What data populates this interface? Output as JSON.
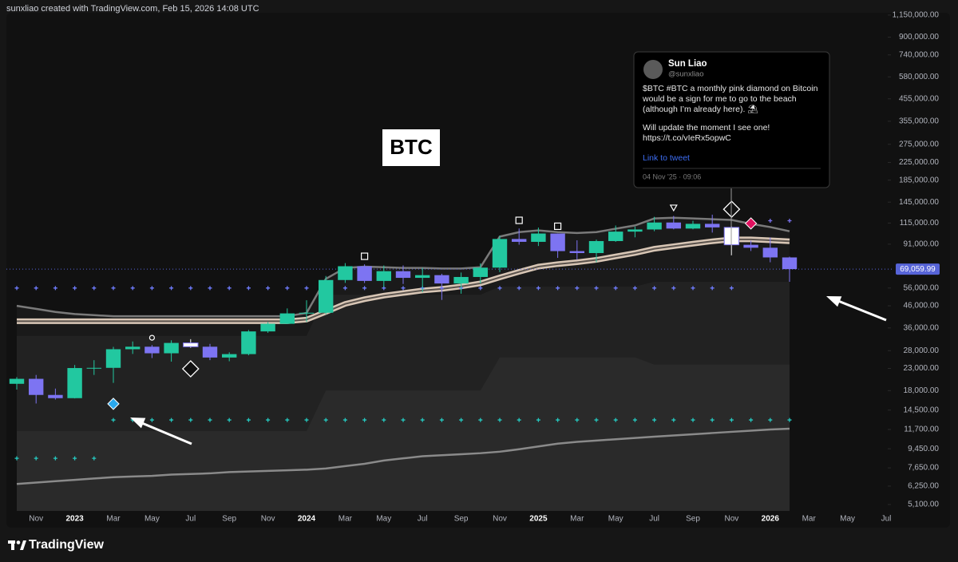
{
  "header": "sunxliao created with TradingView.com, Feb 15, 2026 14:08 UTC",
  "footer": "TradingView",
  "chart_data": {
    "type": "candlestick",
    "symbol_label": "BTC",
    "log_scale": true,
    "categories": [
      "2022-10",
      "2022-11",
      "2022-12",
      "2023-01",
      "2023-02",
      "2023-03",
      "2023-04",
      "2023-05",
      "2023-06",
      "2023-07",
      "2023-08",
      "2023-09",
      "2023-10",
      "2023-11",
      "2023-12",
      "2024-01",
      "2024-02",
      "2024-03",
      "2024-04",
      "2024-05",
      "2024-06",
      "2024-07",
      "2024-08",
      "2024-09",
      "2024-10",
      "2024-11",
      "2024-12",
      "2025-01",
      "2025-02",
      "2025-03",
      "2025-04",
      "2025-05",
      "2025-06",
      "2025-07",
      "2025-08",
      "2025-09",
      "2025-10",
      "2025-11",
      "2025-12",
      "2026-01",
      "2026-02"
    ],
    "open": [
      19400,
      20500,
      17150,
      16550,
      23100,
      23150,
      28450,
      29250,
      27200,
      30500,
      29250,
      25950,
      26950,
      34650,
      37700,
      42300,
      42600,
      61200,
      71300,
      60600,
      67500,
      62700,
      64600,
      58900,
      63300,
      70200,
      96400,
      93400,
      102400,
      84300,
      82500,
      94200,
      104600,
      107100,
      115700,
      108200,
      114000,
      109600,
      90400,
      87500,
      78600
    ],
    "high": [
      20900,
      21400,
      18400,
      23900,
      25200,
      29200,
      31000,
      29800,
      31400,
      31800,
      30200,
      27500,
      35200,
      38400,
      44700,
      48900,
      64000,
      73800,
      72800,
      71900,
      71900,
      70000,
      65600,
      66500,
      73600,
      99600,
      108300,
      109400,
      102500,
      95000,
      95800,
      111900,
      110500,
      123200,
      124500,
      117900,
      126200,
      110700,
      94600,
      97900,
      79300
    ],
    "low": [
      18200,
      15600,
      16300,
      16500,
      21400,
      19600,
      27000,
      25800,
      24800,
      28900,
      25200,
      24900,
      26600,
      34100,
      37600,
      38500,
      41900,
      59300,
      59200,
      56600,
      58600,
      53500,
      49100,
      52600,
      58900,
      66800,
      90500,
      89200,
      78200,
      76600,
      74400,
      93400,
      98200,
      105100,
      107300,
      107300,
      103500,
      80600,
      84400,
      74500,
      60000
    ],
    "close": [
      20500,
      17150,
      16550,
      23100,
      23150,
      28450,
      29250,
      27200,
      30500,
      29250,
      25950,
      26950,
      34650,
      37700,
      42300,
      42600,
      61200,
      71300,
      60600,
      67500,
      62700,
      64600,
      58900,
      63300,
      70200,
      96400,
      93400,
      102400,
      84300,
      82500,
      94200,
      104600,
      107100,
      115700,
      108200,
      114000,
      109600,
      90400,
      87500,
      78600,
      69059.99
    ],
    "up_color": "#22c8a0",
    "down_color": "#7d74f2",
    "highlight_color": "#ffffff",
    "highlighted": [
      "2023-07",
      "2025-11"
    ],
    "ylim": [
      4750,
      1190000
    ],
    "yticks": [
      {
        "value": 1150000,
        "label": "1,150,000.00"
      },
      {
        "value": 900000,
        "label": "900,000.00"
      },
      {
        "value": 740000,
        "label": "740,000.00"
      },
      {
        "value": 580000,
        "label": "580,000.00"
      },
      {
        "value": 455000,
        "label": "455,000.00"
      },
      {
        "value": 355000,
        "label": "355,000.00"
      },
      {
        "value": 275000,
        "label": "275,000.00"
      },
      {
        "value": 225000,
        "label": "225,000.00"
      },
      {
        "value": 185000,
        "label": "185,000.00"
      },
      {
        "value": 145000,
        "label": "145,000.00"
      },
      {
        "value": 115000,
        "label": "115,000.00"
      },
      {
        "value": 91000,
        "label": "91,000.00"
      },
      {
        "value": 56000,
        "label": "56,000.00"
      },
      {
        "value": 46000,
        "label": "46,000.00"
      },
      {
        "value": 36000,
        "label": "36,000.00"
      },
      {
        "value": 28000,
        "label": "28,000.00"
      },
      {
        "value": 23000,
        "label": "23,000.00"
      },
      {
        "value": 18000,
        "label": "18,000.00"
      },
      {
        "value": 14500,
        "label": "14,500.00"
      },
      {
        "value": 11700,
        "label": "11,700.00"
      },
      {
        "value": 9450,
        "label": "9,450.00"
      },
      {
        "value": 7650,
        "label": "7,650.00"
      },
      {
        "value": 6250,
        "label": "6,250.00"
      },
      {
        "value": 5100,
        "label": "5,100.00"
      }
    ],
    "xlim": [
      "2022-10",
      "2026-07"
    ],
    "xticks": [
      {
        "value": "2022-11",
        "label": "Nov"
      },
      {
        "value": "2023-01",
        "label": "2023"
      },
      {
        "value": "2023-03",
        "label": "Mar"
      },
      {
        "value": "2023-05",
        "label": "May"
      },
      {
        "value": "2023-07",
        "label": "Jul"
      },
      {
        "value": "2023-09",
        "label": "Sep"
      },
      {
        "value": "2023-11",
        "label": "Nov"
      },
      {
        "value": "2024-01",
        "label": "2024"
      },
      {
        "value": "2024-03",
        "label": "Mar"
      },
      {
        "value": "2024-05",
        "label": "May"
      },
      {
        "value": "2024-07",
        "label": "Jul"
      },
      {
        "value": "2024-09",
        "label": "Sep"
      },
      {
        "value": "2024-11",
        "label": "Nov"
      },
      {
        "value": "2025-01",
        "label": "2025"
      },
      {
        "value": "2025-03",
        "label": "Mar"
      },
      {
        "value": "2025-05",
        "label": "May"
      },
      {
        "value": "2025-07",
        "label": "Jul"
      },
      {
        "value": "2025-09",
        "label": "Sep"
      },
      {
        "value": "2025-11",
        "label": "Nov"
      },
      {
        "value": "2026-01",
        "label": "2026"
      },
      {
        "value": "2026-03",
        "label": "Mar"
      },
      {
        "value": "2026-05",
        "label": "May"
      },
      {
        "value": "2026-07",
        "label": "Jul"
      }
    ],
    "last_price": {
      "value": 69059.99,
      "label": "69,059.99",
      "color": "#5764d8"
    },
    "lines": [
      {
        "kind": "zone",
        "color": "#ffffff",
        "opacity": 0.035,
        "values": [
          33000,
          33000,
          33000,
          33000,
          33000,
          33000,
          33000,
          33000,
          33000,
          33000,
          33000,
          33000,
          33000,
          33000,
          33000,
          33000,
          52000,
          52000,
          52000,
          52000,
          52000,
          52000,
          52000,
          52000,
          52000,
          57000,
          57000,
          57000,
          57000,
          57000,
          57000,
          57000,
          57000,
          60000,
          60000,
          60000,
          60000,
          60000,
          60000,
          60000,
          60000
        ]
      },
      {
        "kind": "zone",
        "color": "#ffffff",
        "opacity": 0.04,
        "values": [
          11500,
          11500,
          11500,
          11500,
          11500,
          11500,
          11500,
          11500,
          11500,
          11500,
          11500,
          11500,
          11500,
          11500,
          11500,
          11500,
          18000,
          18000,
          18000,
          18000,
          18000,
          18000,
          18000,
          18000,
          18000,
          26000,
          26000,
          26000,
          26000,
          26000,
          26000,
          26000,
          26000,
          24000,
          24000,
          24000,
          24000,
          24000,
          24000,
          24000,
          24000
        ]
      },
      {
        "kind": "band",
        "color": "#7a7a7a",
        "opacity": 0.04,
        "values": [
          46000,
          44500,
          43000,
          42000,
          41500,
          41000,
          41000,
          41000,
          41000,
          41000,
          41000,
          41000,
          41000,
          41000,
          41000,
          42500,
          62000,
          70000,
          71000,
          70500,
          70000,
          70000,
          69500,
          69500,
          70500,
          99000,
          104000,
          106000,
          104000,
          103000,
          104000,
          108000,
          112000,
          121000,
          122000,
          121000,
          120000,
          119000,
          114000,
          110000,
          105000
        ]
      },
      {
        "kind": "line",
        "color": "#8a8a8a",
        "values": [
          6400,
          6500,
          6600,
          6700,
          6800,
          6900,
          6950,
          7000,
          7100,
          7150,
          7200,
          7300,
          7350,
          7400,
          7450,
          7500,
          7600,
          7800,
          8000,
          8300,
          8500,
          8700,
          8800,
          8900,
          9000,
          9150,
          9400,
          9700,
          10000,
          10200,
          10350,
          10500,
          10650,
          10800,
          10950,
          11100,
          11250,
          11400,
          11550,
          11700,
          11800
        ]
      },
      {
        "kind": "ribbon",
        "color": "#d8c6b5",
        "values": [
          38800,
          38800,
          38800,
          38800,
          38800,
          38800,
          38800,
          38800,
          38800,
          38800,
          38800,
          38800,
          38800,
          38800,
          38800,
          39500,
          43000,
          47000,
          49500,
          51500,
          53000,
          54500,
          55500,
          57000,
          59000,
          63000,
          67000,
          71000,
          73000,
          74500,
          76500,
          79500,
          82500,
          86500,
          89000,
          91500,
          94000,
          96000,
          96000,
          95000,
          94000
        ]
      }
    ],
    "markers": [
      {
        "color": "#6f7cff",
        "values": [
          56000,
          56000,
          56000,
          56000,
          56000,
          56000,
          56000,
          56000,
          56000,
          56000,
          56000,
          56000,
          56000,
          56000,
          56000,
          56000,
          56000,
          56000,
          56000,
          56000,
          56000,
          56000,
          56000,
          56000,
          56000,
          56000,
          56000,
          56000,
          56000,
          56000,
          56000,
          56000,
          56000,
          56000,
          56000,
          56000,
          56000,
          56000,
          null,
          null,
          null
        ]
      },
      {
        "color": "#25c9c0",
        "values": [
          null,
          null,
          null,
          null,
          null,
          13000,
          13000,
          13000,
          13000,
          13000,
          13000,
          13000,
          13000,
          13000,
          13000,
          13000,
          13000,
          13000,
          13000,
          13000,
          13000,
          13000,
          13000,
          13000,
          13000,
          13000,
          13000,
          13000,
          13000,
          13000,
          13000,
          13000,
          13000,
          13000,
          13000,
          13000,
          13000,
          13000,
          13000,
          13000,
          13000
        ]
      },
      {
        "color": "#25c9c0",
        "values": [
          8500,
          8500,
          8500,
          8500,
          8500,
          null,
          null,
          null,
          null,
          null,
          null,
          null,
          null,
          null,
          null,
          null,
          null,
          null,
          null,
          null,
          null,
          null,
          null,
          null,
          null,
          null,
          null,
          null,
          null,
          null,
          null,
          null,
          null,
          null,
          null,
          null,
          null,
          null,
          null,
          null,
          null
        ]
      },
      {
        "color": "#7d74f2",
        "values": [
          null,
          null,
          null,
          null,
          null,
          null,
          null,
          null,
          null,
          null,
          null,
          null,
          null,
          null,
          null,
          null,
          null,
          null,
          null,
          null,
          null,
          null,
          null,
          null,
          null,
          null,
          null,
          null,
          null,
          null,
          null,
          null,
          null,
          null,
          null,
          null,
          null,
          null,
          null,
          118000,
          118000
        ]
      }
    ],
    "signals": [
      {
        "x": "2023-03",
        "value": 15540,
        "shape": "diamond",
        "color": "#2aa8ec"
      },
      {
        "x": "2023-05",
        "value": 32300,
        "shape": "circle-outline",
        "color": "#ffffff"
      },
      {
        "x": "2023-07",
        "value": 22900,
        "shape": "diamond-outline",
        "color": "#ffffff"
      },
      {
        "x": "2024-04",
        "value": 79600,
        "shape": "square-outline",
        "color": "#ffffff"
      },
      {
        "x": "2024-12",
        "value": 118500,
        "shape": "square-outline",
        "color": "#ffffff"
      },
      {
        "x": "2025-02",
        "value": 111000,
        "shape": "square-outline",
        "color": "#ffffff"
      },
      {
        "x": "2025-08",
        "value": 136600,
        "shape": "triangle-down-outline",
        "color": "#ffffff"
      },
      {
        "x": "2025-11",
        "value": 134000,
        "shape": "diamond-outline",
        "color": "#ffffff"
      },
      {
        "x": "2025-12",
        "value": 114500,
        "shape": "diamond",
        "color": "#e0115f"
      }
    ]
  },
  "tweet": {
    "name": "Sun Liao",
    "handle": "@sunxliao",
    "paragraphs": [
      [
        "$BTC #BTC a monthly pink diamond on Bitcoin",
        "would be a sign for me to go to the beach",
        "(although I’m already here). ⛱"
      ],
      [
        "Will update the moment I see one!",
        "https://t.co/vIeRx5opwC"
      ]
    ],
    "link": "Link to tweet",
    "timestamp": "04 Nov '25 · 09:06"
  }
}
